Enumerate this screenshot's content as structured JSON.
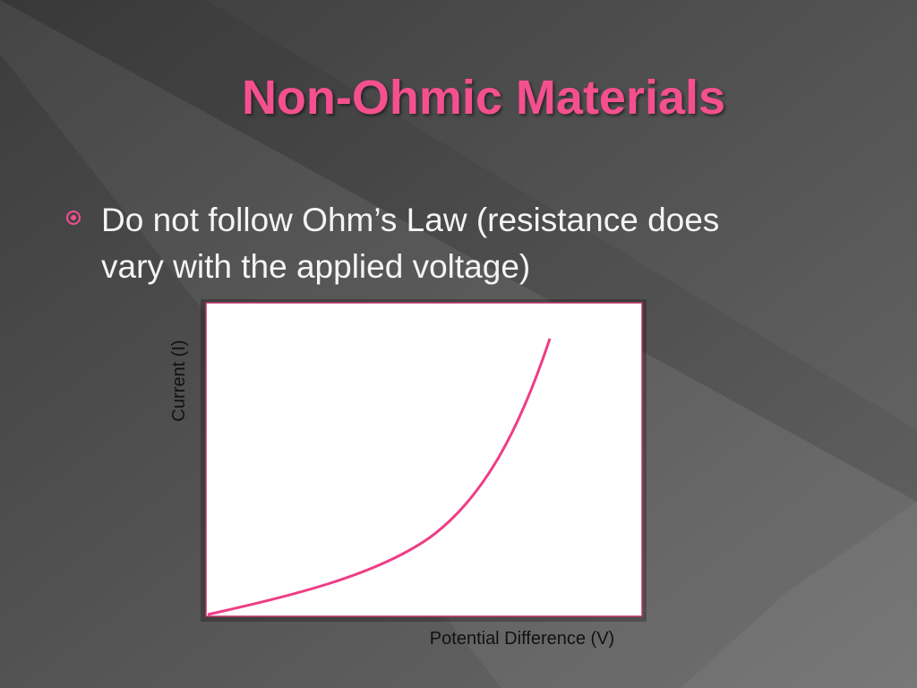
{
  "slide": {
    "title": "Non-Ohmic Materials",
    "bullets": [
      "Do not follow Ohm’s Law (resistance does vary with the applied voltage)"
    ],
    "figure": {
      "y_label": "Current (I)",
      "x_label": "Potential Difference (V)"
    }
  }
}
